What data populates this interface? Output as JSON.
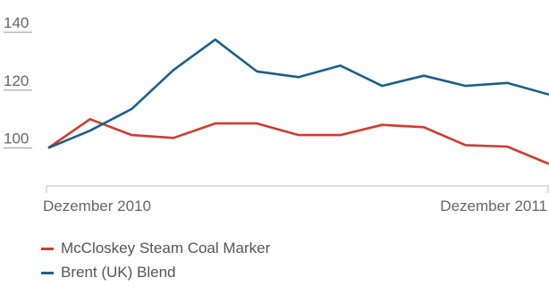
{
  "chart_data": {
    "type": "line",
    "x_ticks": [
      "Dezember 2010",
      "Dezember 2011"
    ],
    "y_ticks": [
      100,
      120,
      140
    ],
    "ylim": [
      90,
      145
    ],
    "x": [
      0,
      1,
      2,
      3,
      4,
      5,
      6,
      7,
      8,
      9,
      10,
      11,
      12
    ],
    "series": [
      {
        "name": "McCloskey Steam Coal Marker",
        "color": "#d03a2f",
        "values": [
          100,
          110,
          104.5,
          103.5,
          108.5,
          108.5,
          104.5,
          104.5,
          108,
          107.2,
          101,
          100.5,
          94.5
        ]
      },
      {
        "name": "Brent (UK) Blend",
        "color": "#1b5f8c",
        "values": [
          100,
          106,
          113.5,
          127,
          137.5,
          126.5,
          124.5,
          128.5,
          121.5,
          125,
          121.5,
          122.5,
          118.5
        ]
      }
    ],
    "grid": false,
    "legend_position": "bottom-left"
  }
}
